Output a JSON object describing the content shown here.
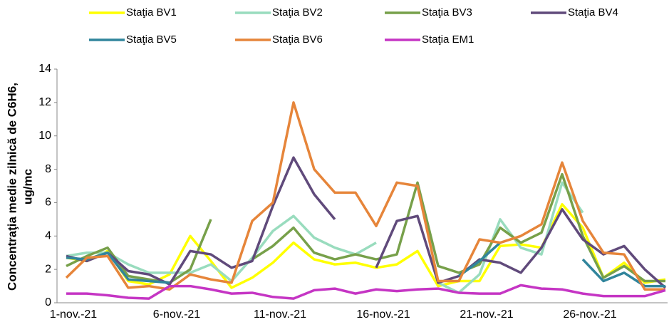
{
  "chart_data": {
    "type": "line",
    "y_label": [
      "Concentraţia medie zilnică de C6H6,",
      "ug/mc"
    ],
    "categories": [
      "1-nov.-21",
      null,
      null,
      null,
      null,
      "6-nov.-21",
      null,
      null,
      null,
      null,
      "11-nov.-21",
      null,
      null,
      null,
      null,
      "16-nov.-21",
      null,
      null,
      null,
      null,
      "21-nov.-21",
      null,
      null,
      null,
      null,
      "26-nov.-21",
      null,
      null,
      null,
      null
    ],
    "ylim": [
      0,
      14
    ],
    "yticks": [
      0,
      2,
      4,
      6,
      8,
      10,
      12,
      14
    ],
    "grid": false,
    "series": [
      {
        "name": "Staţia BV1",
        "color": "#ffff00",
        "values": [
          2.7,
          2.5,
          3.1,
          1.3,
          1.1,
          1.7,
          4.0,
          2.5,
          0.9,
          1.5,
          2.4,
          3.6,
          2.6,
          2.3,
          2.4,
          2.1,
          2.3,
          3.1,
          1.0,
          1.3,
          1.3,
          3.4,
          3.5,
          3.3,
          5.9,
          4.5,
          1.5,
          2.4,
          1.2,
          1.4
        ]
      },
      {
        "name": "Staţia BV2",
        "color": "#99dcbe",
        "values": [
          2.8,
          3.0,
          3.0,
          2.3,
          1.8,
          1.8,
          1.8,
          2.3,
          1.3,
          2.7,
          4.3,
          5.2,
          3.9,
          3.3,
          2.9,
          3.6,
          null,
          null,
          1.2,
          0.6,
          1.7,
          5.0,
          3.3,
          2.9,
          7.2,
          5.4,
          null,
          null,
          null,
          null
        ]
      },
      {
        "name": "Staţia BV3",
        "color": "#77a04a",
        "values": [
          2.2,
          2.8,
          3.3,
          1.6,
          1.4,
          1.2,
          2.0,
          5.0,
          null,
          2.6,
          3.4,
          4.5,
          3.0,
          2.6,
          2.9,
          2.6,
          2.9,
          7.2,
          2.2,
          1.8,
          2.3,
          4.5,
          3.6,
          4.2,
          7.7,
          4.0,
          1.5,
          2.2,
          1.3,
          1.3
        ]
      },
      {
        "name": "Staţia BV4",
        "color": "#604a7b",
        "values": [
          2.8,
          2.5,
          3.0,
          1.9,
          1.7,
          1.1,
          3.1,
          2.9,
          2.1,
          2.5,
          5.8,
          8.7,
          6.5,
          5.0,
          null,
          2.1,
          4.9,
          5.2,
          1.2,
          1.6,
          2.6,
          2.4,
          1.8,
          3.3,
          5.6,
          3.8,
          2.9,
          3.4,
          2.0,
          0.9
        ]
      },
      {
        "name": "Staţia BV5",
        "color": "#31859c",
        "values": [
          2.7,
          2.6,
          3.0,
          1.4,
          1.3,
          1.2,
          null,
          null,
          null,
          null,
          null,
          null,
          null,
          null,
          null,
          null,
          null,
          null,
          null,
          1.6,
          2.5,
          3.6,
          null,
          null,
          null,
          2.6,
          1.3,
          1.8,
          1.0,
          1.0
        ]
      },
      {
        "name": "Staţia BV6",
        "color": "#e6853a",
        "values": [
          1.5,
          2.7,
          2.8,
          0.9,
          1.0,
          0.8,
          1.7,
          1.4,
          1.2,
          4.9,
          6.0,
          12.0,
          8.0,
          6.6,
          6.6,
          4.6,
          7.2,
          7.0,
          1.3,
          1.3,
          3.8,
          3.6,
          4.0,
          4.7,
          8.4,
          4.9,
          3.0,
          2.9,
          0.8,
          0.8
        ]
      },
      {
        "name": "Staţia EM1",
        "color": "#c535c4",
        "values": [
          0.55,
          0.55,
          0.45,
          0.3,
          0.25,
          1.0,
          1.0,
          0.8,
          0.55,
          0.6,
          0.35,
          0.25,
          0.75,
          0.85,
          0.55,
          0.8,
          0.7,
          0.8,
          0.85,
          0.6,
          0.55,
          0.55,
          1.05,
          0.85,
          0.8,
          0.55,
          0.4,
          0.4,
          0.4,
          0.75
        ]
      }
    ]
  }
}
